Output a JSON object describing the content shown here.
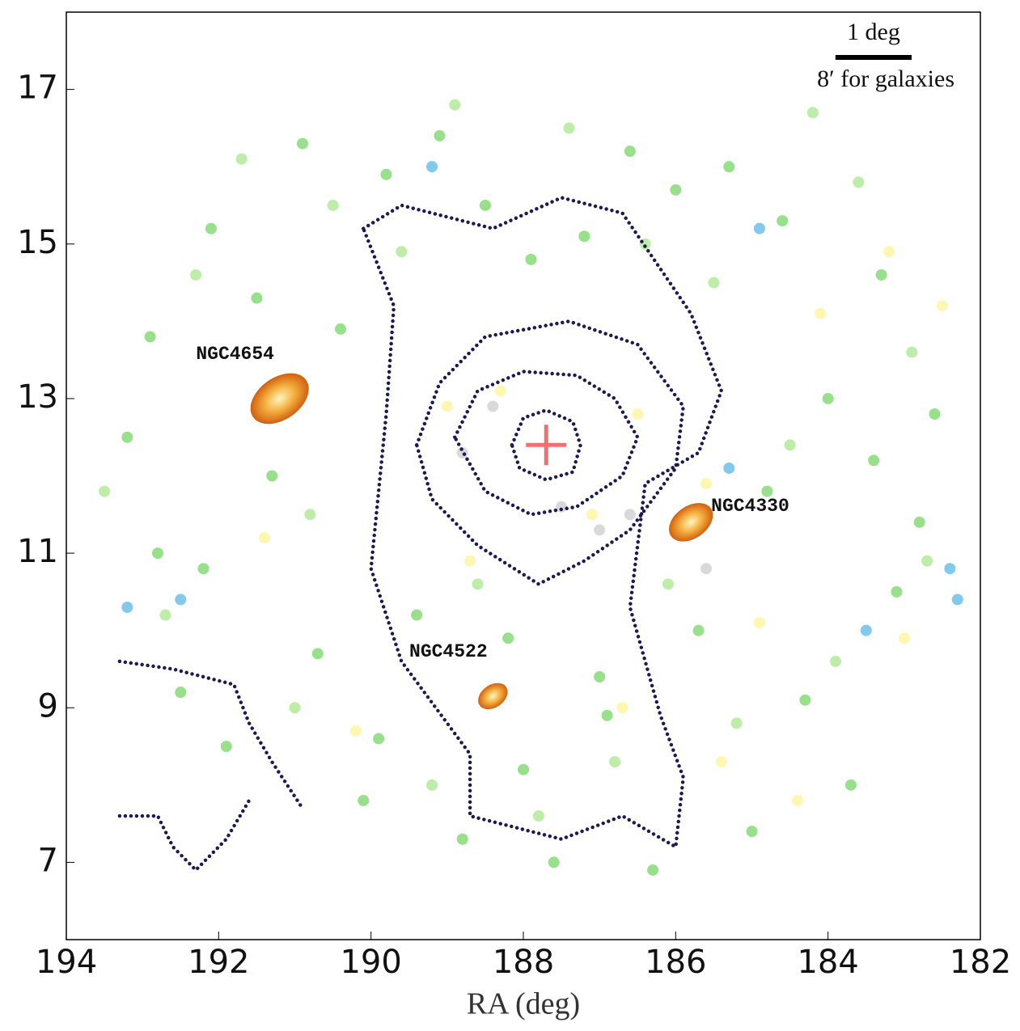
{
  "chart_data": {
    "type": "scatter",
    "xlabel": "RA (deg)",
    "xlim": [
      194,
      182
    ],
    "ylim": [
      6,
      18
    ],
    "xticks": [
      194,
      192,
      190,
      188,
      186,
      184,
      182
    ],
    "yticks": [
      7,
      9,
      11,
      13,
      15,
      17
    ],
    "series": [
      {
        "color": "#7ed86e",
        "x": [
          193.2,
          192.8,
          192.1,
          191.5,
          190.9,
          190.4,
          189.8,
          189.1,
          188.5,
          187.9,
          187.2,
          186.6,
          186.0,
          185.3,
          184.6,
          184.0,
          183.4,
          182.8,
          192.5,
          191.9,
          190.7,
          189.4,
          188.2,
          187.0,
          185.7,
          184.3,
          183.1,
          192.9,
          191.3,
          190.1,
          188.8,
          187.6,
          186.3,
          185.0,
          183.7,
          182.6,
          192.2,
          189.9,
          188.0,
          186.9,
          184.8,
          183.3
        ],
        "y": [
          12.5,
          11.0,
          15.2,
          14.3,
          16.3,
          13.9,
          15.9,
          16.4,
          15.5,
          14.8,
          15.1,
          16.2,
          15.7,
          16.0,
          15.3,
          13.0,
          12.2,
          11.4,
          9.2,
          8.5,
          9.7,
          10.2,
          9.9,
          9.4,
          10.0,
          9.1,
          10.5,
          13.8,
          12.0,
          7.8,
          7.3,
          7.0,
          6.9,
          7.4,
          8.0,
          12.8,
          10.8,
          8.6,
          8.2,
          8.9,
          11.8,
          14.6
        ],
        "values_note_free": null
      },
      {
        "color": "#aee894",
        "x": [
          193.5,
          192.3,
          191.7,
          190.5,
          189.6,
          188.9,
          187.4,
          186.4,
          185.5,
          184.2,
          183.6,
          182.9,
          192.7,
          191.0,
          189.2,
          187.8,
          186.8,
          185.2,
          183.9,
          182.7,
          190.8,
          188.6,
          186.1,
          184.5
        ],
        "y": [
          11.8,
          14.6,
          16.1,
          15.5,
          14.9,
          16.8,
          16.5,
          15.0,
          14.5,
          16.7,
          15.8,
          13.6,
          10.2,
          9.0,
          8.0,
          7.6,
          8.3,
          8.8,
          9.6,
          10.9,
          11.5,
          10.6,
          10.6,
          12.4
        ]
      },
      {
        "color": "#fff59d",
        "x": [
          189.0,
          188.3,
          187.1,
          186.5,
          185.6,
          184.9,
          184.1,
          183.2,
          182.5,
          190.2,
          188.7,
          186.7,
          185.4,
          184.4,
          183.0,
          191.4
        ],
        "y": [
          12.9,
          13.1,
          11.5,
          12.8,
          11.9,
          10.1,
          14.1,
          14.9,
          14.2,
          8.7,
          10.9,
          9.0,
          8.3,
          7.8,
          9.9,
          11.2
        ]
      },
      {
        "color": "#64bce6",
        "x": [
          193.2,
          192.5,
          184.9,
          183.5,
          182.3,
          185.3,
          182.4,
          189.2
        ],
        "y": [
          10.3,
          10.4,
          15.2,
          10.0,
          10.4,
          12.1,
          10.8,
          16.0
        ]
      },
      {
        "color": "#d0d0d0",
        "x": [
          188.4,
          187.5,
          187.0,
          186.6,
          188.8,
          185.6
        ],
        "y": [
          12.9,
          11.6,
          11.3,
          11.5,
          12.3,
          10.8
        ]
      }
    ],
    "contours": {
      "color": "#1b1b4f",
      "lines": [
        {
          "x": [
            188.15,
            188.0,
            187.7,
            187.35,
            187.25,
            187.35,
            187.7,
            188.05,
            188.15
          ],
          "y": [
            12.4,
            12.75,
            12.85,
            12.7,
            12.4,
            12.05,
            11.95,
            12.1,
            12.4
          ]
        },
        {
          "x": [
            188.9,
            188.6,
            188.0,
            187.3,
            186.8,
            186.5,
            186.7,
            187.3,
            187.9,
            188.5,
            188.9
          ],
          "y": [
            12.5,
            13.1,
            13.35,
            13.3,
            13.0,
            12.5,
            12.0,
            11.6,
            11.5,
            11.8,
            12.5
          ]
        },
        {
          "x": [
            189.4,
            189.1,
            188.5,
            187.4,
            186.5,
            185.9,
            186.0,
            186.6,
            187.2,
            187.8,
            188.6,
            189.2,
            189.4
          ],
          "y": [
            12.4,
            13.2,
            13.8,
            14.0,
            13.7,
            12.9,
            12.1,
            11.3,
            10.9,
            10.6,
            11.1,
            11.7,
            12.4
          ]
        },
        {
          "x": [
            190.1,
            189.6,
            188.4,
            187.5,
            186.7,
            185.8,
            185.4,
            185.7,
            186.4,
            186.6,
            186.2,
            185.9,
            186.0,
            186.7,
            187.5,
            188.7,
            188.7,
            189.6,
            190.0,
            189.8,
            189.7,
            190.1
          ],
          "y": [
            15.2,
            15.5,
            15.2,
            15.6,
            15.4,
            14.1,
            13.1,
            12.3,
            11.9,
            10.3,
            8.9,
            8.1,
            7.2,
            7.6,
            7.3,
            7.6,
            8.4,
            9.6,
            10.8,
            12.8,
            14.2,
            15.2
          ]
        },
        {
          "x": [
            193.3,
            192.6,
            191.8,
            191.6,
            191.3,
            190.9
          ],
          "y": [
            9.6,
            9.5,
            9.3,
            8.8,
            8.3,
            7.7
          ]
        },
        {
          "x": [
            193.3,
            192.8,
            192.6,
            192.3,
            191.9,
            191.6
          ],
          "y": [
            7.6,
            7.6,
            7.2,
            6.9,
            7.3,
            7.8
          ]
        }
      ]
    },
    "center": {
      "x": 187.7,
      "y": 12.4,
      "color": "#f07070"
    },
    "annotations": [
      {
        "text": "NGC4654",
        "x": 191.2,
        "y": 13.0
      },
      {
        "text": "NGC4330",
        "x": 185.8,
        "y": 11.4
      },
      {
        "text": "NGC4522",
        "x": 188.4,
        "y": 9.15
      }
    ],
    "scalebar": {
      "length": 1,
      "label": "1 deg",
      "note": "8′ for galaxies"
    }
  }
}
